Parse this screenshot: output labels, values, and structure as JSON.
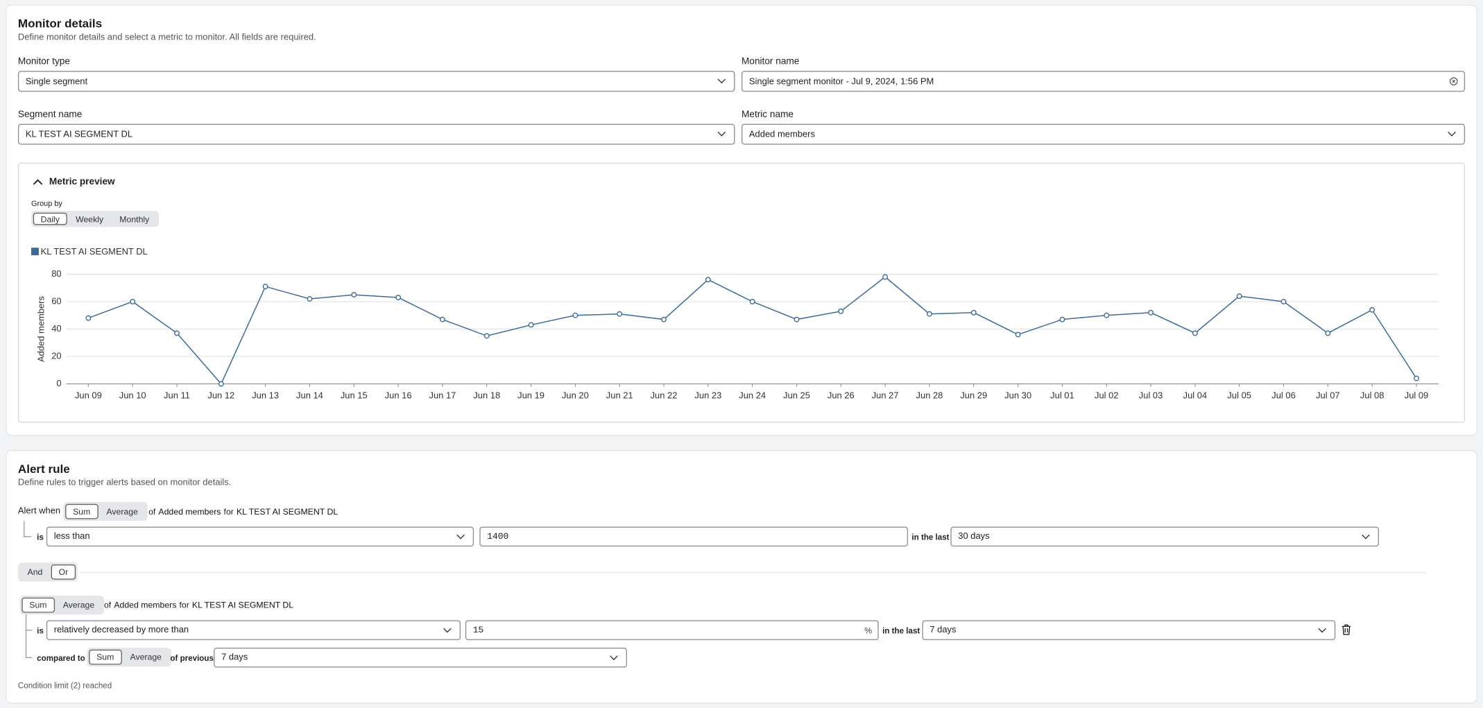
{
  "monitor_details": {
    "title": "Monitor details",
    "description": "Define monitor details and select a metric to monitor. All fields are required.",
    "monitor_type": {
      "label": "Monitor type",
      "value": "Single segment"
    },
    "monitor_name": {
      "label": "Monitor name",
      "value": "Single segment monitor - Jul 9, 2024, 1:56 PM"
    },
    "segment_name": {
      "label": "Segment name",
      "value": "KL TEST AI SEGMENT DL"
    },
    "metric_name": {
      "label": "Metric name",
      "value": "Added members"
    }
  },
  "metric_preview": {
    "title": "Metric preview",
    "group_by": {
      "label": "Group by",
      "options": [
        "Daily",
        "Weekly",
        "Monthly"
      ]
    }
  },
  "chart_data": {
    "type": "line",
    "y_label": "Added members",
    "categories": [
      "Jun 09",
      "Jun 10",
      "Jun 11",
      "Jun 12",
      "Jun 13",
      "Jun 14",
      "Jun 15",
      "Jun 16",
      "Jun 17",
      "Jun 18",
      "Jun 19",
      "Jun 20",
      "Jun 21",
      "Jun 22",
      "Jun 23",
      "Jun 24",
      "Jun 25",
      "Jun 26",
      "Jun 27",
      "Jun 28",
      "Jun 29",
      "Jun 30",
      "Jul 01",
      "Jul 02",
      "Jul 03",
      "Jul 04",
      "Jul 05",
      "Jul 06",
      "Jul 07",
      "Jul 08",
      "Jul 09"
    ],
    "series": [
      {
        "name": "KL TEST AI SEGMENT DL",
        "color": "#3b6a9a",
        "values": [
          48,
          60,
          37,
          0,
          71,
          62,
          65,
          63,
          47,
          35,
          43,
          50,
          51,
          47,
          76,
          60,
          47,
          53,
          78,
          51,
          52,
          36,
          47,
          50,
          52,
          37,
          64,
          60,
          37,
          54,
          4
        ]
      }
    ],
    "ylim": [
      0,
      80
    ],
    "yticks": [
      0,
      20,
      40,
      60,
      80
    ],
    "grid": true
  },
  "alert_rule": {
    "title": "Alert rule",
    "description": "Define rules to trigger alerts based on monitor details.",
    "alert_when": "Alert when",
    "condition_1": {
      "aggregation": [
        "Sum",
        "Average"
      ],
      "of": "of",
      "metric": "Added members",
      "for": "for",
      "segment": "KL TEST AI SEGMENT DL",
      "is": "is",
      "operator": "less than",
      "threshold": 1400,
      "in_the_last": "in the last",
      "window": "30 days"
    },
    "logic": [
      "And",
      "Or"
    ],
    "condition_2": {
      "aggregation": [
        "Sum",
        "Average"
      ],
      "of": "of",
      "metric": "Added members",
      "for": "for",
      "segment": "KL TEST AI SEGMENT DL",
      "is": "is",
      "operator": "relatively decreased by more than",
      "threshold": 15,
      "unit": "%",
      "in_the_last": "in the last",
      "window": "7 days",
      "compared_to": "compared to",
      "comparison_aggregation": [
        "Sum",
        "Average"
      ],
      "of_previous": "of previous",
      "comparison_window": "7 days"
    },
    "footer": "Condition limit (2) reached"
  }
}
